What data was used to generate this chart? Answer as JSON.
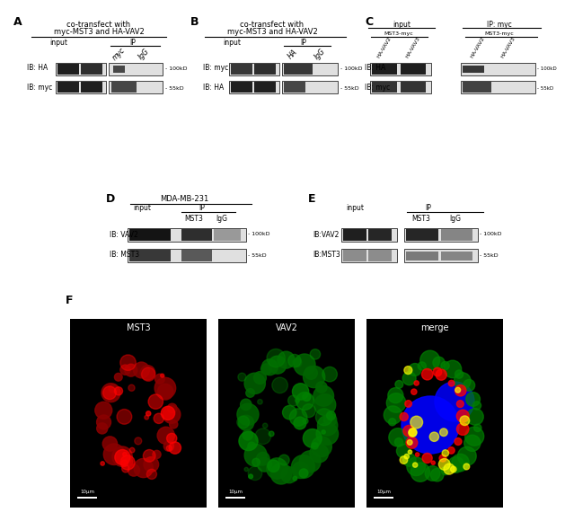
{
  "bg_color": "#ffffff",
  "figure_width": 6.0,
  "figure_height": 5.7,
  "panels": {
    "A": {
      "label": "A",
      "title_line1": "co-transfect with",
      "title_line2": "myc-MST3 and HA-VAV2",
      "col_labels": [
        "myc",
        "IgG"
      ],
      "row_labels": [
        "IB: HA",
        "IB: myc"
      ],
      "size_labels": [
        "100kD",
        "55kD"
      ]
    },
    "B": {
      "label": "B",
      "title_line1": "co-transfect with",
      "title_line2": "myc-MST3 and HA-VAV2",
      "col_labels": [
        "HA",
        "IgG"
      ],
      "row_labels": [
        "IB: myc",
        "IB: HA"
      ],
      "size_labels": [
        "100kD",
        "55kD"
      ]
    },
    "C": {
      "label": "C",
      "header_input": "input",
      "header_IP": "IP: myc",
      "col_labels_input": [
        "HA-VAV2",
        "HA-VAV3"
      ],
      "col_labels_IP": [
        "HA-VAV2",
        "HA-VAV3"
      ],
      "row_labels": [
        "IB: HA",
        "IB: myc"
      ],
      "size_labels": [
        "100kD",
        "55kD"
      ]
    },
    "D": {
      "label": "D",
      "title": "MDA-MB-231",
      "col_labels": [
        "MST3",
        "IgG"
      ],
      "row_labels": [
        "IB: VAV2",
        "IB: MST3"
      ],
      "size_labels": [
        "100kD",
        "55kD"
      ]
    },
    "E": {
      "label": "E",
      "col_labels": [
        "MST3",
        "IgG"
      ],
      "row_labels": [
        "IB:VAV2",
        "IB:MST3"
      ],
      "size_labels": [
        "100kD",
        "55kD"
      ]
    },
    "F": {
      "label": "F",
      "images": [
        "MST3",
        "VAV2",
        "merge"
      ],
      "scale_bar": "10μm"
    }
  }
}
